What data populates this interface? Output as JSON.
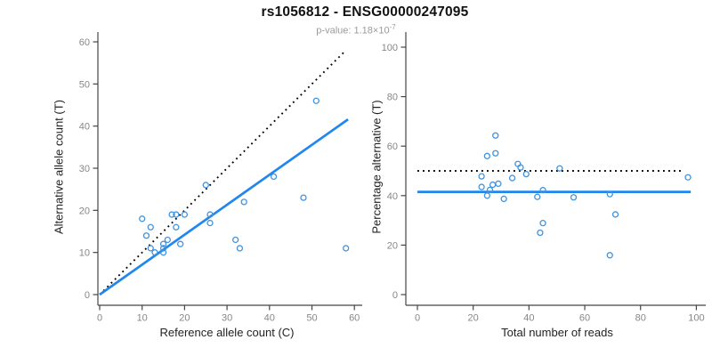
{
  "header": {
    "title": "rs1056812 - ENSG00000247095",
    "p_value_label": "p-value: 1.18×10",
    "p_value_exponent": "-7"
  },
  "colors": {
    "line_blue": "#1f87ed",
    "point_blue": "#4193dd",
    "dotted_black": "#000000",
    "axis": "#454545",
    "tick_label": "#878787",
    "axis_label": "#222222",
    "title": "#111111",
    "subtitle": "#9a9a9a",
    "background": "#ffffff"
  },
  "chart_data": [
    {
      "id": "allele-count-scatter",
      "type": "scatter",
      "xlabel": "Reference allele count (C)",
      "ylabel": "Alternative allele count (T)",
      "xlim": [
        0,
        60
      ],
      "ylim": [
        0,
        60
      ],
      "xticks": [
        0,
        10,
        20,
        30,
        40,
        50,
        60
      ],
      "yticks": [
        0,
        10,
        20,
        30,
        40,
        50,
        60
      ],
      "grid": false,
      "legend": null,
      "points": [
        [
          10,
          18
        ],
        [
          11,
          14
        ],
        [
          12,
          16
        ],
        [
          12,
          11
        ],
        [
          13,
          10
        ],
        [
          15,
          12
        ],
        [
          15,
          11
        ],
        [
          15,
          10
        ],
        [
          16,
          13
        ],
        [
          17,
          19
        ],
        [
          18,
          19
        ],
        [
          18,
          16
        ],
        [
          19,
          12
        ],
        [
          20,
          19
        ],
        [
          25,
          26
        ],
        [
          26,
          19
        ],
        [
          26,
          17
        ],
        [
          32,
          13
        ],
        [
          33,
          11
        ],
        [
          34,
          22
        ],
        [
          41,
          28
        ],
        [
          48,
          23
        ],
        [
          51,
          46
        ],
        [
          58,
          11
        ]
      ],
      "lines": [
        {
          "name": "identity-50pct-line",
          "style": "dotted",
          "color": "#000000",
          "x1": 0,
          "y1": 0,
          "x2": 58,
          "y2": 58
        },
        {
          "name": "fitted-ratio-line",
          "style": "solid",
          "color": "#1f87ed",
          "x1": 0,
          "y1": 0,
          "x2": 58.5,
          "y2": 41.6
        }
      ]
    },
    {
      "id": "percentage-vs-reads-scatter",
      "type": "scatter",
      "xlabel": "Total number of reads",
      "ylabel": "Percentage alternative (T)",
      "xlim": [
        0,
        100
      ],
      "ylim": [
        0,
        100
      ],
      "xticks": [
        0,
        20,
        40,
        60,
        80,
        100
      ],
      "yticks": [
        0,
        20,
        40,
        60,
        80,
        100
      ],
      "grid": false,
      "legend": null,
      "points": [
        [
          28,
          64.3
        ],
        [
          25,
          56.0
        ],
        [
          28,
          57.1
        ],
        [
          23,
          47.8
        ],
        [
          23,
          43.5
        ],
        [
          27,
          44.4
        ],
        [
          26,
          42.3
        ],
        [
          25,
          40.0
        ],
        [
          29,
          44.8
        ],
        [
          36,
          52.8
        ],
        [
          37,
          51.4
        ],
        [
          34,
          47.1
        ],
        [
          31,
          38.7
        ],
        [
          39,
          48.7
        ],
        [
          51,
          51.0
        ],
        [
          45,
          42.2
        ],
        [
          43,
          39.5
        ],
        [
          45,
          28.9
        ],
        [
          44,
          25.0
        ],
        [
          56,
          39.3
        ],
        [
          69,
          40.6
        ],
        [
          71,
          32.4
        ],
        [
          97,
          47.4
        ],
        [
          69,
          15.9
        ]
      ],
      "lines": [
        {
          "name": "fifty-percent-line",
          "style": "dotted",
          "color": "#000000",
          "x1": 0,
          "y1": 50,
          "x2": 95,
          "y2": 50
        },
        {
          "name": "mean-percentage-line",
          "style": "solid",
          "color": "#1f87ed",
          "x1": 0,
          "y1": 41.5,
          "x2": 98,
          "y2": 41.5
        }
      ]
    }
  ]
}
